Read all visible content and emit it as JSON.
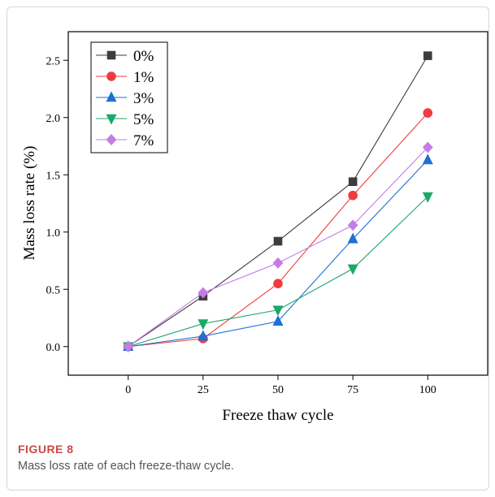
{
  "figure": {
    "label": "FIGURE 8",
    "caption": "Mass loss rate of each freeze-thaw cycle."
  },
  "chart_data": {
    "type": "line",
    "title": "",
    "xlabel": "Freeze thaw cycle",
    "ylabel": "Mass loss rate (%)",
    "x": [
      0,
      25,
      50,
      75,
      100
    ],
    "xlim": [
      -20,
      120
    ],
    "ylim": [
      -0.25,
      2.75
    ],
    "xticks": [
      "0",
      "25",
      "50",
      "75",
      "100"
    ],
    "yticks": [
      "0.0",
      "0.5",
      "1.0",
      "1.5",
      "2.0",
      "2.5"
    ],
    "legend_position": "top-left",
    "grid": false,
    "series": [
      {
        "name": "0%",
        "color": "#3d3d3d",
        "marker": "square",
        "values": [
          0.0,
          0.44,
          0.92,
          1.44,
          2.54
        ]
      },
      {
        "name": "1%",
        "color": "#f03c3c",
        "marker": "circle",
        "values": [
          0.0,
          0.07,
          0.55,
          1.32,
          2.04
        ]
      },
      {
        "name": "3%",
        "color": "#1f6fd6",
        "marker": "triangle-up",
        "values": [
          0.0,
          0.09,
          0.22,
          0.94,
          1.63
        ]
      },
      {
        "name": "5%",
        "color": "#1aa86a",
        "marker": "triangle-down",
        "values": [
          0.0,
          0.2,
          0.32,
          0.68,
          1.31
        ]
      },
      {
        "name": "7%",
        "color": "#c67ce6",
        "marker": "diamond",
        "values": [
          0.0,
          0.47,
          0.73,
          1.06,
          1.74
        ]
      }
    ]
  }
}
